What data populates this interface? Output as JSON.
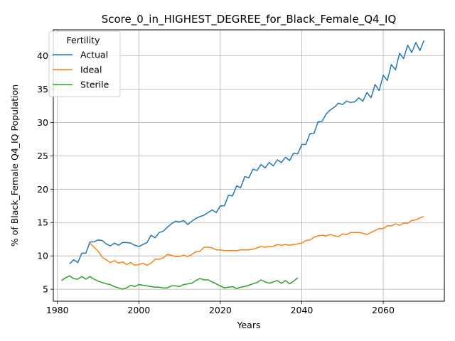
{
  "chart_data": {
    "type": "line",
    "title": "Score_0_in_HIGHEST_DEGREE_for_Black_Female_Q4_IQ",
    "xlabel": "Years",
    "ylabel": "% of Black_Female Q4_IQ Population",
    "xlim": [
      1979,
      2075
    ],
    "ylim": [
      3.2,
      43.9
    ],
    "xticks": [
      1980,
      2000,
      2020,
      2040,
      2060
    ],
    "yticks": [
      5,
      10,
      15,
      20,
      25,
      30,
      35,
      40
    ],
    "grid": true,
    "legend": {
      "title": "Fertility",
      "position": "top-left"
    },
    "series": [
      {
        "name": "Actual",
        "color": "#1f77b4",
        "x": [
          1983,
          1984,
          1985,
          1986,
          1987,
          1988,
          1989,
          1990,
          1991,
          1992,
          1993,
          1994,
          1995,
          1996,
          1997,
          1998,
          1999,
          2000,
          2001,
          2002,
          2003,
          2004,
          2005,
          2006,
          2007,
          2008,
          2009,
          2010,
          2011,
          2012,
          2013,
          2014,
          2015,
          2016,
          2017,
          2018,
          2019,
          2020,
          2021,
          2022,
          2023,
          2024,
          2025,
          2026,
          2027,
          2028,
          2029,
          2030,
          2031,
          2032,
          2033,
          2034,
          2035,
          2036,
          2037,
          2038,
          2039,
          2040,
          2041,
          2042,
          2043,
          2044,
          2045,
          2046,
          2047,
          2048,
          2049,
          2050,
          2051,
          2052,
          2053,
          2054,
          2055,
          2056,
          2057,
          2058,
          2059,
          2060,
          2061,
          2062,
          2063,
          2064,
          2065,
          2066,
          2067,
          2068,
          2069,
          2070
        ],
        "values": [
          8.8,
          9.4,
          9.0,
          10.4,
          10.4,
          12.1,
          12.1,
          12.4,
          12.3,
          11.8,
          11.5,
          11.9,
          11.6,
          12.0,
          12.0,
          11.9,
          11.6,
          11.4,
          11.7,
          12.0,
          13.1,
          12.7,
          13.5,
          13.7,
          14.3,
          14.8,
          15.2,
          15.1,
          15.3,
          14.7,
          15.2,
          15.6,
          15.9,
          16.1,
          16.5,
          16.9,
          16.5,
          17.5,
          17.5,
          19.1,
          19.0,
          20.5,
          20.2,
          21.9,
          21.7,
          23.0,
          22.8,
          23.7,
          23.2,
          24.0,
          23.5,
          24.4,
          24.0,
          24.8,
          24.3,
          25.4,
          25.3,
          26.7,
          26.7,
          28.3,
          28.4,
          30.1,
          30.2,
          31.3,
          31.9,
          32.3,
          32.9,
          32.7,
          33.2,
          33.0,
          33.1,
          33.7,
          33.2,
          34.5,
          33.7,
          35.7,
          34.8,
          37.1,
          36.3,
          38.7,
          37.9,
          40.4,
          39.6,
          41.6,
          40.5,
          42.0,
          40.8,
          42.3
        ]
      },
      {
        "name": "Ideal",
        "color": "#ff7f0e",
        "x": [
          1988,
          1989,
          1990,
          1991,
          1992,
          1993,
          1994,
          1995,
          1996,
          1997,
          1998,
          1999,
          2000,
          2001,
          2002,
          2003,
          2004,
          2005,
          2006,
          2007,
          2008,
          2009,
          2010,
          2011,
          2012,
          2013,
          2014,
          2015,
          2016,
          2017,
          2018,
          2019,
          2020,
          2021,
          2022,
          2023,
          2024,
          2025,
          2026,
          2027,
          2028,
          2029,
          2030,
          2031,
          2032,
          2033,
          2034,
          2035,
          2036,
          2037,
          2038,
          2039,
          2040,
          2041,
          2042,
          2043,
          2044,
          2045,
          2046,
          2047,
          2048,
          2049,
          2050,
          2051,
          2052,
          2053,
          2054,
          2055,
          2056,
          2057,
          2058,
          2059,
          2060,
          2061,
          2062,
          2063,
          2064,
          2065,
          2066,
          2067,
          2068,
          2069,
          2070
        ],
        "values": [
          11.9,
          11.3,
          10.7,
          9.8,
          9.4,
          9.0,
          9.3,
          8.9,
          9.1,
          8.7,
          9.0,
          8.6,
          8.7,
          8.9,
          8.6,
          8.9,
          9.5,
          9.5,
          9.7,
          10.2,
          10.1,
          9.9,
          9.9,
          10.1,
          9.9,
          10.2,
          10.6,
          10.7,
          11.3,
          11.3,
          11.2,
          10.9,
          10.9,
          10.8,
          10.8,
          10.8,
          10.8,
          10.9,
          10.9,
          10.9,
          11.0,
          11.2,
          11.4,
          11.3,
          11.4,
          11.4,
          11.7,
          11.6,
          11.7,
          11.6,
          11.7,
          11.8,
          11.9,
          12.3,
          12.4,
          12.8,
          13.0,
          13.1,
          13.0,
          13.2,
          13.0,
          12.9,
          13.3,
          13.2,
          13.5,
          13.5,
          13.5,
          13.4,
          13.2,
          13.5,
          13.8,
          14.1,
          14.1,
          14.5,
          14.5,
          14.8,
          14.6,
          14.9,
          14.9,
          15.3,
          15.4,
          15.7,
          15.9
        ]
      },
      {
        "name": "Sterile",
        "color": "#2ca02c",
        "x": [
          1981,
          1982,
          1983,
          1984,
          1985,
          1986,
          1987,
          1988,
          1989,
          1990,
          1991,
          1992,
          1993,
          1994,
          1995,
          1996,
          1997,
          1998,
          1999,
          2000,
          2001,
          2002,
          2003,
          2004,
          2005,
          2006,
          2007,
          2008,
          2009,
          2010,
          2011,
          2012,
          2013,
          2014,
          2015,
          2016,
          2017,
          2018,
          2019,
          2020,
          2021,
          2022,
          2023,
          2024,
          2025,
          2026,
          2027,
          2028,
          2029,
          2030,
          2031,
          2032,
          2033,
          2034,
          2035,
          2036,
          2037,
          2038,
          2039
        ],
        "values": [
          6.3,
          6.7,
          7.0,
          6.6,
          6.5,
          6.9,
          6.5,
          6.9,
          6.5,
          6.2,
          6.0,
          5.8,
          5.7,
          5.4,
          5.2,
          5.0,
          5.2,
          5.6,
          5.4,
          5.7,
          5.6,
          5.5,
          5.4,
          5.3,
          5.3,
          5.2,
          5.2,
          5.5,
          5.5,
          5.4,
          5.7,
          5.8,
          5.9,
          6.3,
          6.6,
          6.4,
          6.4,
          6.1,
          5.8,
          5.5,
          5.2,
          5.3,
          5.4,
          5.1,
          5.3,
          5.4,
          5.6,
          5.8,
          6.0,
          6.4,
          6.1,
          5.9,
          6.1,
          6.3,
          5.9,
          6.3,
          5.8,
          6.2,
          6.7
        ]
      }
    ]
  }
}
